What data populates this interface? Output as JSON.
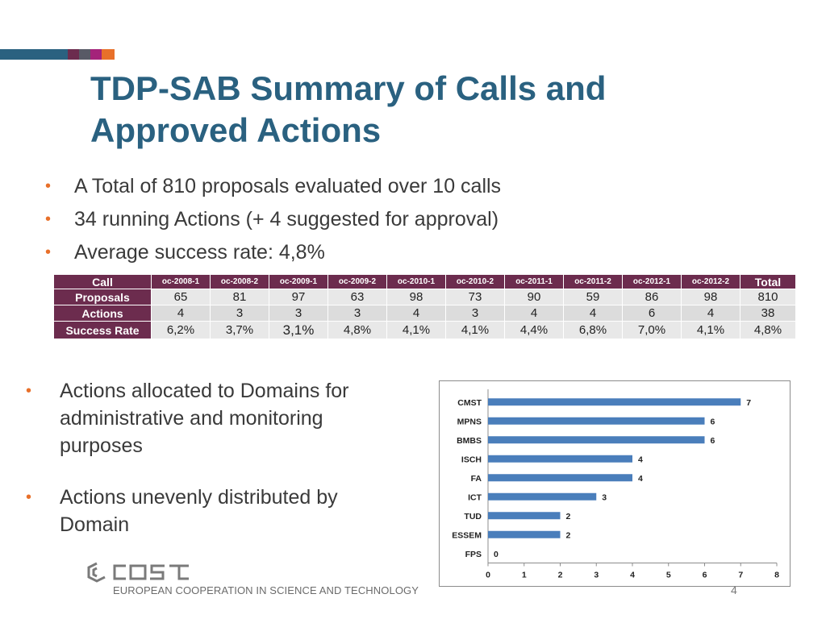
{
  "slide": {
    "title": "TDP-SAB Summary of Calls and Approved Actions",
    "page_number": "4",
    "accent_colors": [
      "#2a6180",
      "#6c2c4e",
      "#585a66",
      "#a4237a",
      "#e8702a"
    ]
  },
  "bullets_top": [
    "A Total of 810 proposals evaluated over 10 calls",
    "34 running Actions (+ 4 suggested for approval)",
    "Average success rate: 4,8%"
  ],
  "bullets_bottom": [
    "Actions allocated to Domains for administrative and monitoring purposes",
    "Actions unevenly distributed by Domain"
  ],
  "table": {
    "header_label": "Call",
    "calls": [
      "oc-2008-1",
      "oc-2008-2",
      "oc-2009-1",
      "oc-2009-2",
      "oc-2010-1",
      "oc-2010-2",
      "oc-2011-1",
      "oc-2011-2",
      "oc-2012-1",
      "oc-2012-2",
      "Total"
    ],
    "rows": [
      {
        "label": "Proposals",
        "values": [
          "65",
          "81",
          "97",
          "63",
          "98",
          "73",
          "90",
          "59",
          "86",
          "98",
          "810"
        ]
      },
      {
        "label": "Actions",
        "values": [
          "4",
          "3",
          "3",
          "3",
          "4",
          "3",
          "4",
          "4",
          "6",
          "4",
          "38"
        ]
      },
      {
        "label": "Success Rate",
        "values": [
          "6,2%",
          "3,7%",
          "3,1%",
          "4,8%",
          "4,1%",
          "4,1%",
          "4,4%",
          "6,8%",
          "7,0%",
          "4,1%",
          "4,8%"
        ]
      }
    ]
  },
  "chart_data": {
    "type": "bar",
    "orientation": "horizontal",
    "categories": [
      "CMST",
      "MPNS",
      "BMBS",
      "ISCH",
      "FA",
      "ICT",
      "TUD",
      "ESSEM",
      "FPS"
    ],
    "values": [
      7,
      6,
      6,
      4,
      4,
      3,
      2,
      2,
      0
    ],
    "xlim": [
      0,
      8
    ],
    "xticks": [
      0,
      1,
      2,
      3,
      4,
      5,
      6,
      7,
      8
    ],
    "bar_color": "#4a7ebb",
    "grid": false,
    "data_labels": true
  },
  "footer": {
    "logo_text": "EUROPEAN COOPERATION IN SCIENCE AND TECHNOLOGY"
  }
}
